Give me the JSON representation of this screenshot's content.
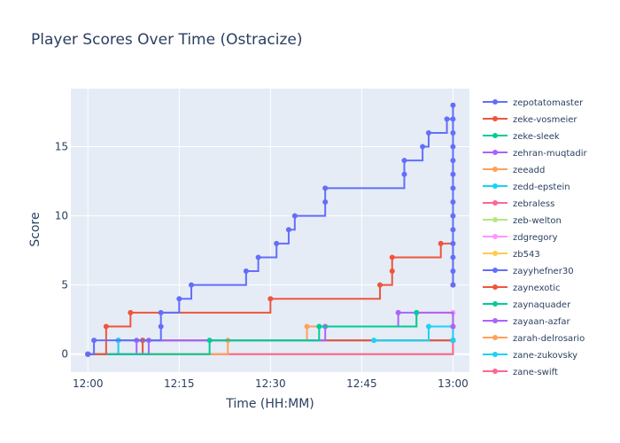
{
  "chart_data": {
    "type": "line",
    "line_shape": "step",
    "title": "Player Scores Over Time (Ostracize)",
    "xlabel": "Time (HH:MM)",
    "ylabel": "Score",
    "xlim": [
      "12:00",
      "13:00"
    ],
    "ylim": [
      -1.3,
      19.2
    ],
    "x_ticks": [
      "12:00",
      "12:15",
      "12:30",
      "12:45",
      "13:00"
    ],
    "y_ticks": [
      0,
      5,
      10,
      15
    ],
    "grid": true,
    "legend_position": "right",
    "series": [
      {
        "name": "zepotatomaster",
        "color": "#636efa",
        "x": [
          "12:00",
          "12:01",
          "12:12",
          "12:12",
          "12:15",
          "12:17",
          "12:26",
          "12:28",
          "12:31",
          "12:33",
          "12:34",
          "12:39",
          "12:39",
          "12:52",
          "12:52",
          "12:55",
          "12:56",
          "12:59",
          "13:00",
          "13:00",
          "13:00",
          "13:00",
          "13:00",
          "13:00",
          "13:00",
          "13:00",
          "13:00",
          "13:00",
          "13:00",
          "13:00",
          "13:00",
          "13:00"
        ],
        "y": [
          0,
          1,
          2,
          3,
          4,
          5,
          6,
          7,
          8,
          9,
          10,
          11,
          12,
          13,
          14,
          15,
          16,
          17,
          18,
          17,
          16,
          15,
          14,
          13,
          12,
          11,
          10,
          9,
          8,
          7,
          6,
          5
        ]
      },
      {
        "name": "zeke-vosmeier",
        "color": "#ef553b",
        "x": [
          "12:00",
          "12:03",
          "12:07",
          "12:30",
          "12:48",
          "12:50",
          "12:50",
          "12:58",
          "13:00"
        ],
        "y": [
          0,
          2,
          3,
          4,
          5,
          6,
          7,
          8,
          5
        ]
      },
      {
        "name": "zeke-sleek",
        "color": "#00cc96",
        "x": [
          "12:00",
          "12:20",
          "12:38",
          "12:54"
        ],
        "y": [
          0,
          1,
          2,
          3
        ]
      },
      {
        "name": "zehran-muqtadir",
        "color": "#ab63fa",
        "x": [
          "12:00",
          "12:10",
          "12:39",
          "12:51",
          "13:00"
        ],
        "y": [
          0,
          1,
          2,
          3,
          2
        ]
      },
      {
        "name": "zeeadd",
        "color": "#ffa15a",
        "x": [
          "12:00",
          "12:23",
          "12:36",
          "12:54",
          "13:00"
        ],
        "y": [
          0,
          1,
          2,
          3,
          2
        ]
      },
      {
        "name": "zedd-epstein",
        "color": "#19d3f3",
        "x": [
          "12:47",
          "12:56",
          "13:00"
        ],
        "y": [
          1,
          2,
          1
        ]
      },
      {
        "name": "zebraless",
        "color": "#ff6692",
        "x": [
          "12:00",
          "13:00"
        ],
        "y": [
          0,
          1
        ]
      },
      {
        "name": "zeb-welton",
        "color": "#b6e880",
        "x": [
          "12:00",
          "13:00"
        ],
        "y": [
          0,
          2
        ]
      },
      {
        "name": "zdgregory",
        "color": "#ff97ff",
        "x": [
          "12:00",
          "13:00"
        ],
        "y": [
          0,
          3
        ]
      },
      {
        "name": "zb543",
        "color": "#fecb52",
        "x": [
          "12:00",
          "13:00"
        ],
        "y": [
          0,
          2
        ]
      },
      {
        "name": "zayyhefner30",
        "color": "#636efa",
        "x": [
          "12:00",
          "13:00"
        ],
        "y": [
          0,
          1
        ]
      },
      {
        "name": "zaynexotic",
        "color": "#ef553b",
        "x": [
          "12:00",
          "12:09",
          "13:00"
        ],
        "y": [
          0,
          1,
          1
        ]
      },
      {
        "name": "zaynaquader",
        "color": "#00cc96",
        "x": [
          "12:00",
          "12:09",
          "13:00"
        ],
        "y": [
          0,
          1,
          1
        ]
      },
      {
        "name": "zayaan-azfar",
        "color": "#ab63fa",
        "x": [
          "12:00",
          "12:08",
          "13:00"
        ],
        "y": [
          0,
          1,
          1
        ]
      },
      {
        "name": "zarah-delrosario",
        "color": "#ffa15a",
        "x": [
          "12:00",
          "13:00"
        ],
        "y": [
          0,
          1
        ]
      },
      {
        "name": "zane-zukovsky",
        "color": "#19d3f3",
        "x": [
          "12:00",
          "12:05",
          "13:00"
        ],
        "y": [
          0,
          1,
          1
        ]
      },
      {
        "name": "zane-swift",
        "color": "#ff6692",
        "x": [
          "12:00",
          "12:05",
          "13:00"
        ],
        "y": [
          0,
          1,
          1
        ]
      }
    ]
  }
}
